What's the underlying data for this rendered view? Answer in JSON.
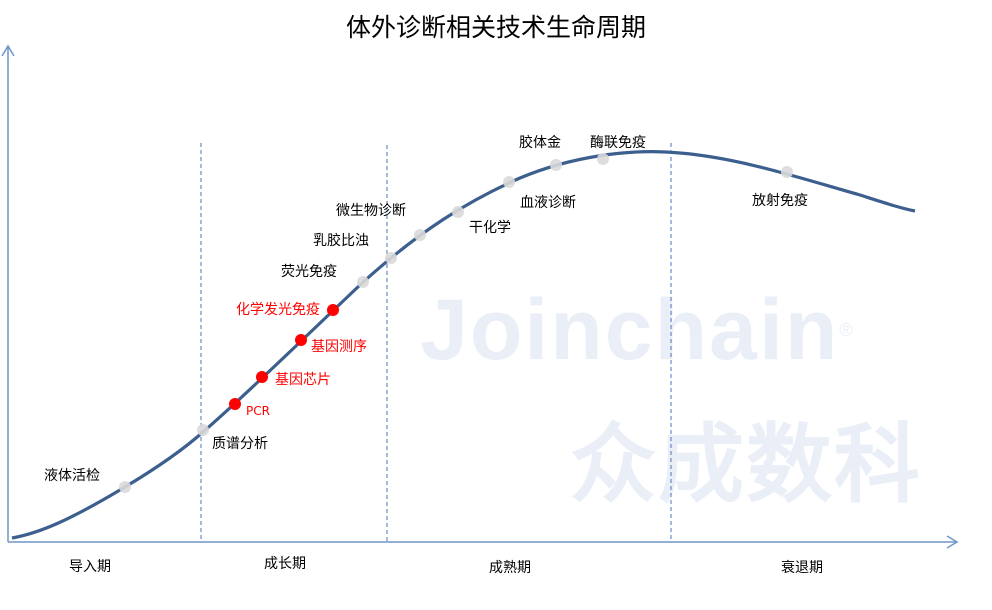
{
  "title": "体外诊断相关技术生命周期",
  "watermark": {
    "brand": "Joinchain",
    "mark": "®",
    "cn": "众成数科"
  },
  "phases": [
    "导入期",
    "成长期",
    "成熟期",
    "衰退期"
  ],
  "colors": {
    "curve": "#3c5f8e",
    "axis": "#6f96c9",
    "divider": "#4a76b8",
    "highlight": "#ff0000",
    "dot": "#d9d9d9"
  },
  "technologies": [
    {
      "label": "液体活检",
      "highlight": false
    },
    {
      "label": "质谱分析",
      "highlight": false
    },
    {
      "label": "PCR",
      "highlight": true
    },
    {
      "label": "基因芯片",
      "highlight": true
    },
    {
      "label": "基因测序",
      "highlight": true
    },
    {
      "label": "化学发光免疫",
      "highlight": true
    },
    {
      "label": "荧光免疫",
      "highlight": false
    },
    {
      "label": "乳胶比浊",
      "highlight": false
    },
    {
      "label": "微生物诊断",
      "highlight": false
    },
    {
      "label": "干化学",
      "highlight": false
    },
    {
      "label": "血液诊断",
      "highlight": false
    },
    {
      "label": "胶体金",
      "highlight": false
    },
    {
      "label": "酶联免疫",
      "highlight": false
    },
    {
      "label": "放射免疫",
      "highlight": false
    }
  ]
}
